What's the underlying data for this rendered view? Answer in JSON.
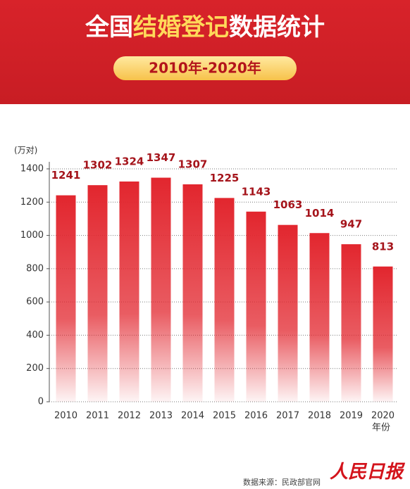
{
  "chart_data": {
    "type": "bar",
    "title_parts": [
      "全国",
      "结婚登记",
      "数据统计"
    ],
    "title_colors": [
      "#ffffff",
      "#ffd95a",
      "#ffffff"
    ],
    "subtitle": "2010年-2020年",
    "y_label": "(万对)",
    "x_label": "年份",
    "categories": [
      "2010",
      "2011",
      "2012",
      "2013",
      "2014",
      "2015",
      "2016",
      "2017",
      "2018",
      "2019",
      "2020"
    ],
    "values": [
      1241,
      1302,
      1324,
      1347,
      1307,
      1225,
      1143,
      1063,
      1014,
      947,
      813
    ],
    "color": "#e2262e",
    "ylim": [
      0,
      1400
    ],
    "yticks": [
      0,
      200,
      400,
      600,
      800,
      1000,
      1200,
      1400
    ],
    "grid": true,
    "source": "数据来源：民政部官网",
    "logo": "人民日报"
  }
}
